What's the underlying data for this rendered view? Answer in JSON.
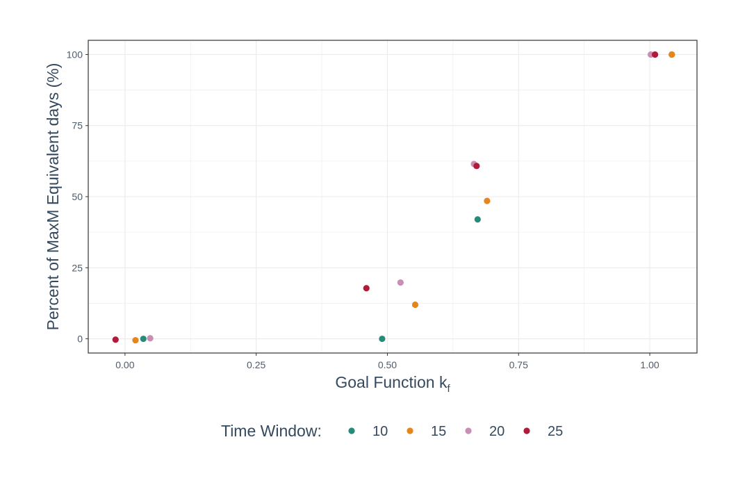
{
  "chart_data": {
    "type": "scatter",
    "xlabel": "Goal Function k",
    "xlabel_subscript": "f",
    "ylabel": "Percent of MaxM Equivalent days (%)",
    "xlim": [
      -0.07,
      1.09
    ],
    "ylim": [
      -5,
      105
    ],
    "x_ticks": [
      0.0,
      0.25,
      0.5,
      0.75,
      1.0
    ],
    "x_tick_labels": [
      "0.00",
      "0.25",
      "0.50",
      "0.75",
      "1.00"
    ],
    "y_ticks": [
      0,
      25,
      50,
      75,
      100
    ],
    "y_tick_labels": [
      "0",
      "25",
      "50",
      "75",
      "100"
    ],
    "grid": true,
    "legend": {
      "title": "Time Window:",
      "position": "bottom"
    },
    "series": [
      {
        "name": "10",
        "color": "#268b78",
        "points": [
          {
            "x": 0.035,
            "y": 0
          },
          {
            "x": 0.49,
            "y": 0
          },
          {
            "x": 0.672,
            "y": 42
          },
          {
            "x": 1.042,
            "y": 100
          }
        ]
      },
      {
        "name": "15",
        "color": "#e8851a",
        "points": [
          {
            "x": 0.02,
            "y": -0.5
          },
          {
            "x": 0.553,
            "y": 12
          },
          {
            "x": 0.69,
            "y": 48.5
          },
          {
            "x": 1.042,
            "y": 100
          }
        ]
      },
      {
        "name": "20",
        "color": "#c68fb3",
        "points": [
          {
            "x": 0.048,
            "y": 0.2
          },
          {
            "x": 0.525,
            "y": 19.8
          },
          {
            "x": 0.665,
            "y": 61.5
          },
          {
            "x": 1.002,
            "y": 100
          }
        ]
      },
      {
        "name": "25",
        "color": "#b21a3a",
        "points": [
          {
            "x": -0.018,
            "y": -0.3
          },
          {
            "x": 0.46,
            "y": 17.8
          },
          {
            "x": 0.67,
            "y": 60.8
          },
          {
            "x": 1.01,
            "y": 100
          }
        ]
      }
    ]
  },
  "colors": {
    "grid": "#ebebeb",
    "panel_border": "#333333",
    "tick_text": "#4d5a6b",
    "title_text": "#34495e"
  }
}
